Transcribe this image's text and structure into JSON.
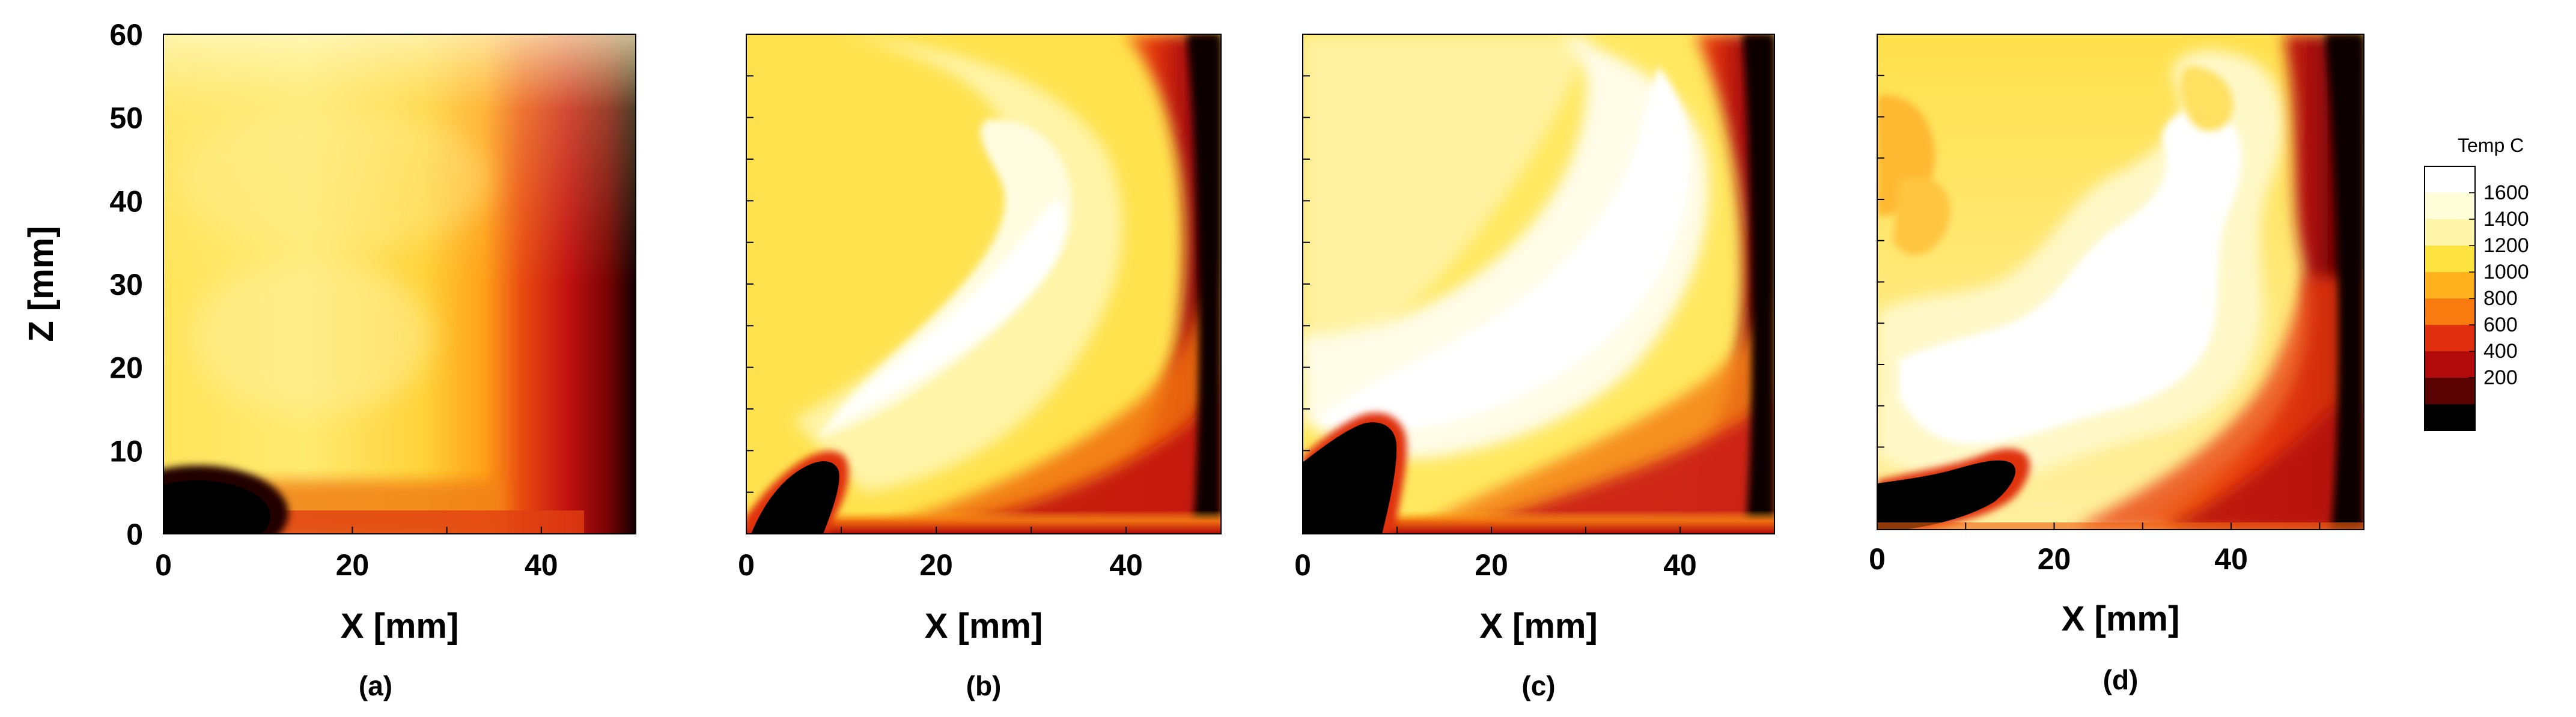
{
  "chart_data": [
    {
      "type": "heatmap",
      "panel_label": "(a)",
      "xlabel": "X [mm]",
      "ylabel": "Z [mm]",
      "xlim": [
        0,
        50
      ],
      "ylim": [
        0,
        60
      ],
      "x_ticks": [
        "0",
        "20",
        "40"
      ],
      "y_ticks": [
        "0",
        "10",
        "20",
        "30",
        "40",
        "50",
        "60"
      ],
      "grid": false
    },
    {
      "type": "heatmap",
      "panel_label": "(b)",
      "xlabel": "X [mm]",
      "ylabel": "",
      "xlim": [
        0,
        50
      ],
      "ylim": [
        0,
        60
      ],
      "x_ticks": [
        "0",
        "20",
        "40"
      ],
      "y_ticks": [],
      "grid": false
    },
    {
      "type": "heatmap",
      "panel_label": "(c)",
      "xlabel": "X [mm]",
      "ylabel": "",
      "xlim": [
        0,
        50
      ],
      "ylim": [
        0,
        60
      ],
      "x_ticks": [
        "0",
        "20",
        "40"
      ],
      "y_ticks": [],
      "grid": false
    },
    {
      "type": "heatmap",
      "panel_label": "(d)",
      "xlabel": "X [mm]",
      "ylabel": "",
      "xlim": [
        0,
        55
      ],
      "ylim": [
        0,
        60
      ],
      "x_ticks": [
        "0",
        "20",
        "40"
      ],
      "y_ticks": [],
      "grid": false
    }
  ],
  "colorbar": {
    "title": "Temp C",
    "labels": [
      "1600",
      "1400",
      "1200",
      "1000",
      "800",
      "600",
      "400",
      "200"
    ],
    "bands": [
      "#FFFFFF",
      "#FFFDD8",
      "#FFF5A8",
      "#FFE340",
      "#FFB21E",
      "#F97B10",
      "#E03010",
      "#B00A0A",
      "#5A0202",
      "#000000"
    ]
  }
}
